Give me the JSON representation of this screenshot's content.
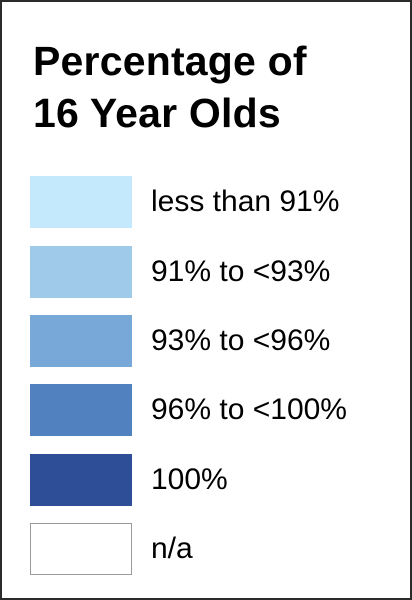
{
  "legend": {
    "title_line_1": "Percentage of",
    "title_line_2": "16 Year Olds",
    "items": [
      {
        "label": "less than 91%",
        "color": "#c4e8fc"
      },
      {
        "label": "91% to <93%",
        "color": "#9fcaea"
      },
      {
        "label": "93% to <96%",
        "color": "#78a8d8"
      },
      {
        "label": "96% to <100%",
        "color": "#5281c0"
      },
      {
        "label": "100%",
        "color": "#2e4f97"
      },
      {
        "label": "n/a",
        "color": "#ffffff"
      }
    ]
  }
}
